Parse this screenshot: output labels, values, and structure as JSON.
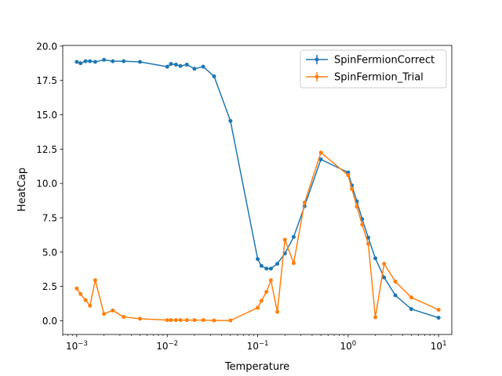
{
  "chart_data": {
    "type": "line",
    "xscale": "log",
    "xlim": [
      0.0007,
      14
    ],
    "ylim": [
      -1,
      20.05
    ],
    "xlabel": "Temperature",
    "ylabel": "HeatCap",
    "grid": false,
    "legend_position": "top-right",
    "x_ticks": [
      {
        "value": 0.001,
        "base": "10",
        "exp": "−3"
      },
      {
        "value": 0.01,
        "base": "10",
        "exp": "−2"
      },
      {
        "value": 0.1,
        "base": "10",
        "exp": "−1"
      },
      {
        "value": 1,
        "base": "10",
        "exp": "0"
      },
      {
        "value": 10,
        "base": "10",
        "exp": "1"
      }
    ],
    "y_ticks": [
      {
        "value": 0,
        "label": "0.0"
      },
      {
        "value": 2.5,
        "label": "2.5"
      },
      {
        "value": 5,
        "label": "5.0"
      },
      {
        "value": 7.5,
        "label": "7.5"
      },
      {
        "value": 10,
        "label": "10.0"
      },
      {
        "value": 12.5,
        "label": "12.5"
      },
      {
        "value": 15,
        "label": "15.0"
      },
      {
        "value": 17.5,
        "label": "17.5"
      },
      {
        "value": 20,
        "label": "20.0"
      }
    ],
    "series": [
      {
        "name": "SpinFermionCorrect",
        "color": "#1f77b4",
        "x": [
          0.001,
          0.0011,
          0.00125,
          0.0014,
          0.0016,
          0.002,
          0.0025,
          0.0033,
          0.005,
          0.01,
          0.011,
          0.0125,
          0.014,
          0.0165,
          0.02,
          0.025,
          0.033,
          0.05,
          0.1,
          0.11,
          0.125,
          0.14,
          0.165,
          0.2,
          0.25,
          0.33,
          0.5,
          1.0,
          1.1,
          1.25,
          1.43,
          1.67,
          2.0,
          2.5,
          3.33,
          5.0,
          10.0
        ],
        "y": [
          18.85,
          18.75,
          18.9,
          18.9,
          18.85,
          19.0,
          18.9,
          18.9,
          18.85,
          18.5,
          18.7,
          18.65,
          18.55,
          18.65,
          18.35,
          18.5,
          17.8,
          14.55,
          4.5,
          4.0,
          3.8,
          3.8,
          4.15,
          4.9,
          6.1,
          8.35,
          11.75,
          10.8,
          9.85,
          8.7,
          7.4,
          6.05,
          4.55,
          3.15,
          1.85,
          0.85,
          0.22
        ]
      },
      {
        "name": "SpinFermion_Trial",
        "color": "#ff7f0e",
        "x": [
          0.001,
          0.0011,
          0.00125,
          0.0014,
          0.0016,
          0.002,
          0.0025,
          0.0033,
          0.005,
          0.01,
          0.011,
          0.0125,
          0.014,
          0.0165,
          0.02,
          0.025,
          0.033,
          0.05,
          0.1,
          0.11,
          0.125,
          0.14,
          0.165,
          0.2,
          0.25,
          0.33,
          0.5,
          1.0,
          1.1,
          1.25,
          1.43,
          1.67,
          2.0,
          2.5,
          3.33,
          5.0,
          10.0
        ],
        "y": [
          2.35,
          1.95,
          1.5,
          1.1,
          2.95,
          0.5,
          0.75,
          0.28,
          0.15,
          0.05,
          0.05,
          0.05,
          0.05,
          0.05,
          0.05,
          0.05,
          0.02,
          0.02,
          0.95,
          1.45,
          2.1,
          2.95,
          0.65,
          5.9,
          4.2,
          8.6,
          12.25,
          10.6,
          9.6,
          8.3,
          7.0,
          5.6,
          0.25,
          4.15,
          2.85,
          1.7,
          0.8
        ]
      }
    ]
  }
}
